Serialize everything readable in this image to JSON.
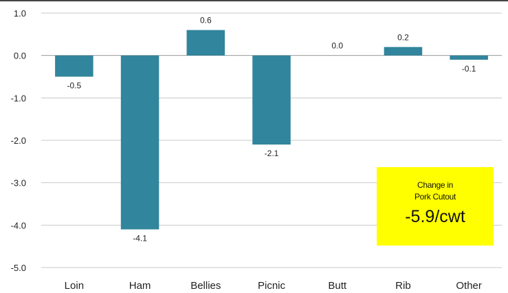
{
  "chart_data": {
    "type": "bar",
    "categories": [
      "Loin",
      "Ham",
      "Bellies",
      "Picnic",
      "Butt",
      "Rib",
      "Other"
    ],
    "values": [
      -0.5,
      -4.1,
      0.6,
      -2.1,
      0.0,
      0.2,
      -0.1
    ],
    "value_labels": [
      "-0.5",
      "-4.1",
      "0.6",
      "-2.1",
      "0.0",
      "0.2",
      "-0.1"
    ],
    "yticks": [
      "1.0",
      "0.0",
      "-1.0",
      "-2.0",
      "-3.0",
      "-4.0",
      "-5.0"
    ],
    "ylim": [
      -5.0,
      1.0
    ],
    "grid": true,
    "bar_color": "#31859c",
    "title": "",
    "xlabel": "",
    "ylabel": ""
  },
  "callout": {
    "line1": "Change in",
    "line2": "Pork Cutout",
    "value": "-5.9/cwt",
    "background": "#ffff00"
  }
}
